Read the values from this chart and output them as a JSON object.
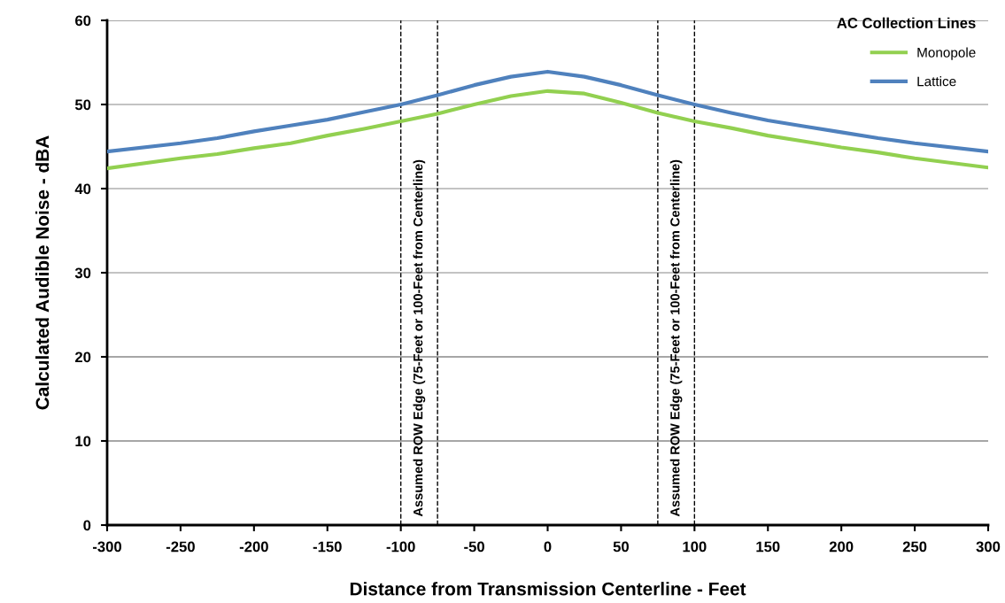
{
  "chart_data": {
    "type": "line",
    "xlabel": "Distance from Transmission Centerline - Feet",
    "ylabel": "Calculated Audible Noise - dBA",
    "legend_title": "AC Collection Lines",
    "x": [
      -300,
      -250,
      -225,
      -200,
      -175,
      -150,
      -125,
      -100,
      -75,
      -50,
      -25,
      0,
      25,
      50,
      75,
      100,
      125,
      150,
      175,
      200,
      225,
      250,
      300
    ],
    "series": [
      {
        "name": "Monopole",
        "color": "#92d050",
        "values": [
          42.4,
          43.6,
          44.1,
          44.8,
          45.4,
          46.3,
          47.1,
          48.0,
          48.9,
          50.0,
          51.0,
          51.6,
          51.3,
          50.2,
          49.0,
          48.0,
          47.2,
          46.3,
          45.6,
          44.9,
          44.3,
          43.6,
          42.5
        ]
      },
      {
        "name": "Lattice",
        "color": "#4f81bd",
        "values": [
          44.4,
          45.4,
          46.0,
          46.8,
          47.5,
          48.2,
          49.1,
          50.0,
          51.1,
          52.3,
          53.3,
          53.9,
          53.3,
          52.3,
          51.1,
          50.0,
          49.0,
          48.1,
          47.4,
          46.7,
          46.0,
          45.4,
          44.4
        ]
      }
    ],
    "xlim": [
      -300,
      300
    ],
    "xticks": [
      -300,
      -250,
      -200,
      -150,
      -100,
      -50,
      0,
      50,
      100,
      150,
      200,
      250,
      300
    ],
    "ylim": [
      0,
      60
    ],
    "yticks": [
      0,
      10,
      20,
      30,
      40,
      50,
      60
    ],
    "ref_lines": [
      {
        "axis": "x",
        "value": -100,
        "label": "Assumed ROW Edge (75-Feet or 100-Feet from Centerline)",
        "color": "#000000",
        "line_style": "dashed"
      },
      {
        "axis": "x",
        "value": -75,
        "color": "#000000",
        "line_style": "dashed"
      },
      {
        "axis": "x",
        "value": 75,
        "label": "Assumed ROW Edge (75-Feet or 100-Feet from Centerline)",
        "color": "#000000",
        "line_style": "dashed"
      },
      {
        "axis": "x",
        "value": 100,
        "color": "#000000",
        "line_style": "dashed"
      }
    ],
    "grid": "y",
    "legend": "top right",
    "marker": "none",
    "line_style": "solid"
  }
}
